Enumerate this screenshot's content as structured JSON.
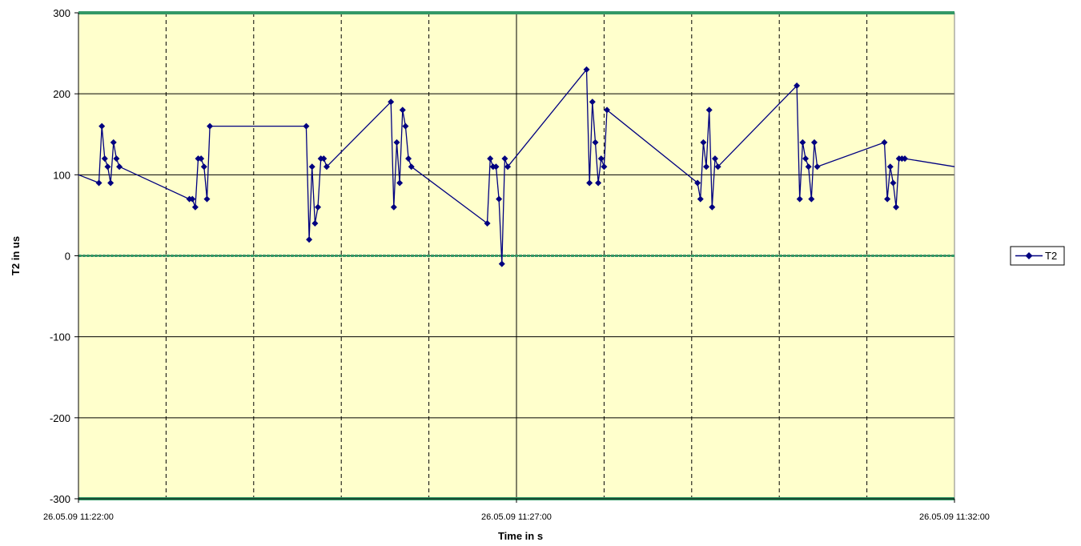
{
  "chart_data": {
    "type": "line",
    "title": "",
    "xlabel": "Time in s",
    "ylabel": "T2 in us",
    "ylim": [
      -300,
      300
    ],
    "yticks": [
      -300,
      -200,
      -100,
      0,
      100,
      200,
      300
    ],
    "xlim": [
      "26.05.09 11:22:00",
      "26.05.09 11:32:00"
    ],
    "xtick_labels": [
      "26.05.09 11:22:00",
      "26.05.09 11:27:00",
      "26.05.09 11:32:00"
    ],
    "grid": true,
    "legend": "right",
    "colors": {
      "plot_background": "#ffffcc",
      "series": "#000080",
      "limit_lines": "#339966",
      "grid": "#000000"
    },
    "reference_lines": [
      300,
      0,
      -300
    ],
    "series": [
      {
        "name": "T2",
        "x": [
          "11:22:00",
          "11:22:14",
          "11:22:16",
          "11:22:18",
          "11:22:20",
          "11:22:22",
          "11:22:24",
          "11:22:26",
          "11:22:28",
          "11:23:16",
          "11:23:18",
          "11:23:20",
          "11:23:22",
          "11:23:24",
          "11:23:26",
          "11:23:28",
          "11:23:30",
          "11:24:36",
          "11:24:38",
          "11:24:40",
          "11:24:42",
          "11:24:44",
          "11:24:46",
          "11:24:48",
          "11:24:50",
          "11:25:34",
          "11:25:36",
          "11:25:38",
          "11:25:40",
          "11:25:42",
          "11:25:44",
          "11:25:46",
          "11:25:48",
          "11:26:40",
          "11:26:42",
          "11:26:44",
          "11:26:46",
          "11:26:48",
          "11:26:50",
          "11:26:52",
          "11:26:54",
          "11:27:48",
          "11:27:50",
          "11:27:52",
          "11:27:54",
          "11:27:56",
          "11:27:58",
          "11:28:00",
          "11:28:02",
          "11:29:04",
          "11:29:06",
          "11:29:08",
          "11:29:10",
          "11:29:12",
          "11:29:14",
          "11:29:16",
          "11:29:18",
          "11:30:12",
          "11:30:14",
          "11:30:16",
          "11:30:18",
          "11:30:20",
          "11:30:22",
          "11:30:24",
          "11:30:26",
          "11:31:12",
          "11:31:14",
          "11:31:16",
          "11:31:18",
          "11:31:20",
          "11:31:22",
          "11:31:24",
          "11:31:26",
          "11:32:00"
        ],
        "values": [
          100,
          90,
          160,
          120,
          110,
          90,
          140,
          120,
          110,
          70,
          70,
          60,
          120,
          120,
          110,
          70,
          160,
          160,
          20,
          110,
          40,
          60,
          120,
          120,
          110,
          190,
          60,
          140,
          90,
          180,
          160,
          120,
          110,
          40,
          120,
          110,
          110,
          70,
          -10,
          120,
          110,
          230,
          90,
          190,
          140,
          90,
          120,
          110,
          180,
          90,
          70,
          140,
          110,
          180,
          60,
          120,
          110,
          210,
          70,
          140,
          120,
          110,
          70,
          140,
          110,
          140,
          70,
          110,
          90,
          60,
          120,
          120,
          120,
          110
        ]
      }
    ]
  }
}
